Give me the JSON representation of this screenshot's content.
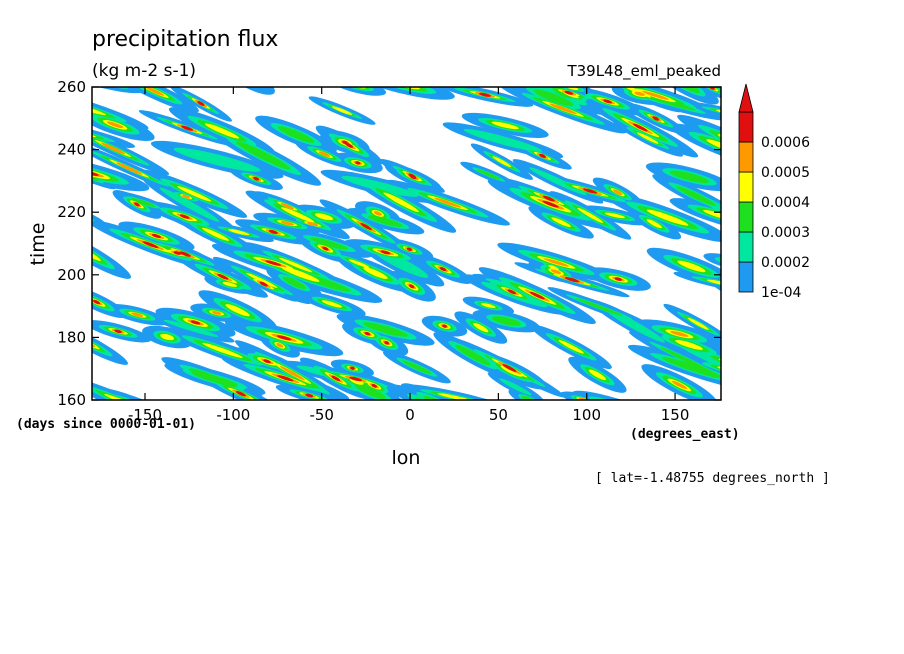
{
  "chart_data": {
    "type": "heatmap",
    "title": "precipitation flux",
    "units": "(kg m-2 s-1)",
    "run_label": "T39L48_eml_peaked",
    "xlabel": "lon",
    "ylabel": "time",
    "x_units": "(degrees_east)",
    "y_units": "(days since 0000-01-01)",
    "note": "[ lat=-1.48755 degrees_north ]",
    "xlim": [
      -180,
      176
    ],
    "ylim": [
      160,
      260
    ],
    "x_ticks": [
      -150,
      -100,
      -50,
      0,
      50,
      100,
      150
    ],
    "x_tick_labels": [
      "-150",
      "-100",
      "-50",
      "0",
      "50",
      "100",
      "150"
    ],
    "y_ticks": [
      160,
      180,
      200,
      220,
      240,
      260
    ],
    "y_tick_labels": [
      "160",
      "180",
      "200",
      "220",
      "240",
      "260"
    ],
    "colorbar": {
      "levels": [
        0.0001,
        0.0002,
        0.0003,
        0.0004,
        0.0005,
        0.0006
      ],
      "level_labels": [
        "1e-04",
        "0.0002",
        "0.0003",
        "0.0004",
        "0.0005",
        "0.0006"
      ],
      "colors": [
        "#1e9bf0",
        "#00e8a0",
        "#1ee01e",
        "#ffff00",
        "#ff9900",
        "#e01010"
      ],
      "extend": "max"
    },
    "grid": false,
    "pattern": "westward-propagating streaks tilted from lower-right to upper-left across all longitudes"
  }
}
